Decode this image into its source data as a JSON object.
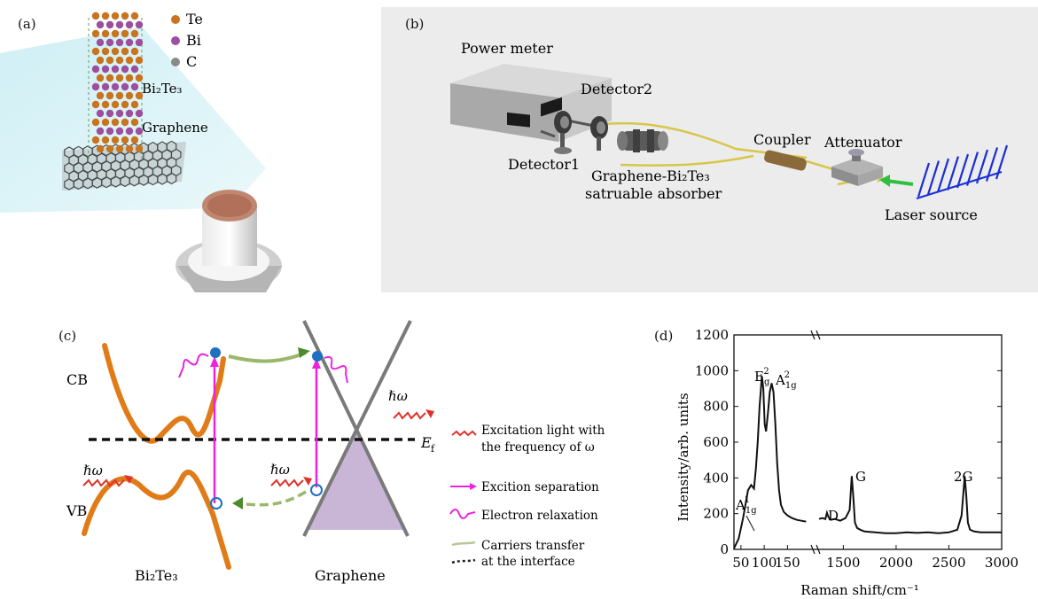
{
  "panel_a": {
    "label": "(a)",
    "legend": [
      {
        "symbol": "Te",
        "color": "#c8741e"
      },
      {
        "symbol": "Bi",
        "color": "#9b4f9d"
      },
      {
        "symbol": "C",
        "color": "#8a8a8a"
      }
    ],
    "layer_top": "Bi₂Te₃",
    "layer_bottom": "Graphene"
  },
  "panel_b": {
    "label": "(b)",
    "power_meter": "Power meter",
    "detector2": "Detector2",
    "detector1": "Detector1",
    "sa_line1": "Graphene-Bi₂Te₃",
    "sa_line2": "satruable absorber",
    "coupler": "Coupler",
    "attenuator": "Attenuator",
    "laser": "Laser source"
  },
  "panel_c": {
    "label": "(c)",
    "cb": "CB",
    "vb": "VB",
    "ef": "E",
    "ef_sub": "f",
    "hw": "ℏω",
    "left_material": "Bi₂Te₃",
    "right_material": "Graphene",
    "legend": [
      {
        "line1": "Excitation light with",
        "line2": "the frequency of ω",
        "color": "#e0332c"
      },
      {
        "line1": "Excition separation",
        "line2": "",
        "color": "#ee22dd"
      },
      {
        "line1": "Electron relaxation",
        "line2": "",
        "color": "#ee22dd"
      },
      {
        "line1": "Carriers transfer",
        "line2": "at the interface",
        "color": "#6a8a3a"
      }
    ]
  },
  "panel_d": {
    "label": "(d)",
    "annotations": {
      "a1g1": "A",
      "eg2": "E",
      "a1g2": "A",
      "d": "D",
      "g": "G",
      "g2": "2G"
    }
  },
  "chart_data": {
    "type": "line",
    "xlabel": "Raman shift/cm⁻¹",
    "ylabel": "Intensity/arb. units",
    "ylim": [
      0,
      1200
    ],
    "yticks": [
      "0",
      "200",
      "400",
      "600",
      "800",
      "1000",
      "1200"
    ],
    "xticks": [
      "50",
      "100",
      "150",
      "1500",
      "2000",
      "2500",
      "3000"
    ],
    "axis_break": true,
    "segment1_xlim": [
      35,
      195
    ],
    "segment2_xlim": [
      1270,
      3000
    ],
    "series": [
      {
        "x": [
          35,
          45,
          55,
          65,
          72,
          78,
          82,
          86,
          90,
          95,
          98,
          101,
          104,
          108,
          112,
          116,
          120,
          124,
          128,
          132,
          136,
          142,
          150,
          160,
          170,
          180,
          190,
          1270,
          1300,
          1330,
          1345,
          1360,
          1380,
          1420,
          1470,
          1520,
          1560,
          1580,
          1595,
          1610,
          1630,
          1660,
          1700,
          1800,
          1900,
          2000,
          2100,
          2200,
          2300,
          2400,
          2500,
          2580,
          2620,
          2650,
          2665,
          2680,
          2700,
          2740,
          2800,
          2900,
          3000
        ],
        "y": [
          5,
          60,
          180,
          330,
          360,
          340,
          450,
          600,
          800,
          970,
          900,
          700,
          660,
          760,
          880,
          930,
          880,
          700,
          480,
          330,
          250,
          210,
          190,
          175,
          165,
          160,
          155,
          170,
          175,
          170,
          205,
          180,
          165,
          170,
          160,
          175,
          220,
          410,
          290,
          150,
          120,
          110,
          100,
          95,
          90,
          90,
          95,
          92,
          95,
          90,
          95,
          110,
          190,
          410,
          300,
          150,
          110,
          100,
          95,
          95,
          95
        ]
      }
    ]
  }
}
